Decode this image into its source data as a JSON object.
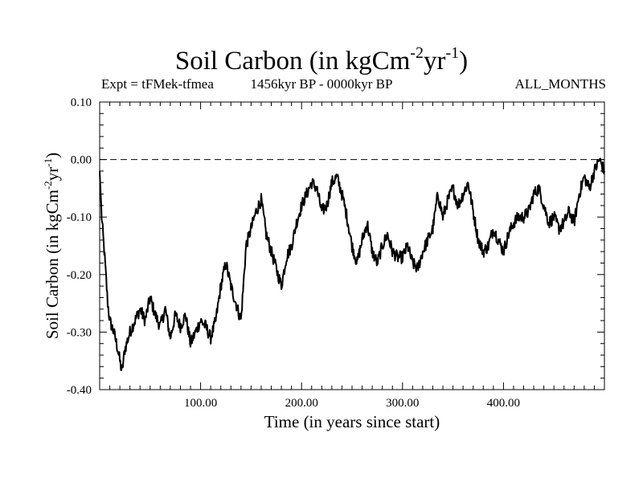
{
  "chart_data": {
    "type": "line",
    "title": {
      "text": "Soil Carbon (in kgCm",
      "exp1": "-2",
      "mid": "yr",
      "exp2": "-1",
      "end": ")"
    },
    "subtitle_left": "Expt = tFMek-tfmea",
    "subtitle_center": "1456kyr BP - 0000kyr BP",
    "subtitle_right": "ALL_MONTHS",
    "xlabel": "Time (in years since start)",
    "ylabel": {
      "text": "Soil Carbon (in kgCm",
      "exp1": "-2",
      "mid": "yr",
      "exp2": "-1",
      "end": ")"
    },
    "xlim": [
      0,
      500
    ],
    "ylim": [
      -0.4,
      0.1
    ],
    "x_ticks": [
      100,
      200,
      300,
      400
    ],
    "x_tick_labels": [
      "100.00",
      "200.00",
      "300.00",
      "400.00"
    ],
    "y_ticks": [
      0.1,
      0.0,
      -0.1,
      -0.2,
      -0.3,
      -0.4
    ],
    "y_tick_labels": [
      "0.10",
      "0.00",
      "-0.10",
      "-0.20",
      "-0.30",
      "-0.40"
    ],
    "reference_line": {
      "y": 0.0,
      "style": "dashed"
    },
    "line_color": "#000000",
    "series": [
      {
        "name": "Soil Carbon",
        "x": [
          0,
          2,
          5,
          8,
          10,
          14,
          18,
          22,
          25,
          30,
          35,
          40,
          45,
          50,
          55,
          60,
          65,
          70,
          75,
          80,
          85,
          90,
          95,
          100,
          105,
          110,
          115,
          120,
          125,
          130,
          135,
          140,
          145,
          150,
          155,
          160,
          165,
          170,
          175,
          180,
          185,
          190,
          195,
          200,
          205,
          210,
          215,
          220,
          225,
          230,
          235,
          240,
          245,
          250,
          255,
          260,
          265,
          270,
          275,
          280,
          285,
          290,
          295,
          300,
          305,
          310,
          315,
          320,
          325,
          330,
          335,
          340,
          345,
          350,
          355,
          360,
          365,
          370,
          375,
          380,
          385,
          390,
          395,
          400,
          405,
          410,
          415,
          420,
          425,
          430,
          435,
          440,
          445,
          450,
          455,
          460,
          465,
          470,
          475,
          480,
          485,
          490,
          495,
          500
        ],
        "values": [
          -0.02,
          -0.1,
          -0.17,
          -0.25,
          -0.28,
          -0.3,
          -0.33,
          -0.37,
          -0.33,
          -0.3,
          -0.28,
          -0.26,
          -0.28,
          -0.24,
          -0.27,
          -0.29,
          -0.26,
          -0.31,
          -0.27,
          -0.29,
          -0.27,
          -0.32,
          -0.3,
          -0.28,
          -0.29,
          -0.31,
          -0.28,
          -0.22,
          -0.18,
          -0.22,
          -0.25,
          -0.28,
          -0.15,
          -0.12,
          -0.09,
          -0.07,
          -0.13,
          -0.16,
          -0.19,
          -0.22,
          -0.17,
          -0.15,
          -0.11,
          -0.08,
          -0.06,
          -0.04,
          -0.05,
          -0.09,
          -0.08,
          -0.04,
          -0.03,
          -0.06,
          -0.1,
          -0.15,
          -0.18,
          -0.14,
          -0.11,
          -0.16,
          -0.18,
          -0.15,
          -0.13,
          -0.16,
          -0.17,
          -0.17,
          -0.15,
          -0.18,
          -0.19,
          -0.16,
          -0.14,
          -0.12,
          -0.06,
          -0.1,
          -0.07,
          -0.05,
          -0.08,
          -0.06,
          -0.04,
          -0.09,
          -0.14,
          -0.16,
          -0.15,
          -0.12,
          -0.14,
          -0.16,
          -0.13,
          -0.11,
          -0.1,
          -0.1,
          -0.09,
          -0.06,
          -0.05,
          -0.08,
          -0.11,
          -0.1,
          -0.12,
          -0.11,
          -0.09,
          -0.11,
          -0.06,
          -0.03,
          -0.05,
          -0.02,
          0.0,
          -0.02
        ]
      }
    ]
  }
}
